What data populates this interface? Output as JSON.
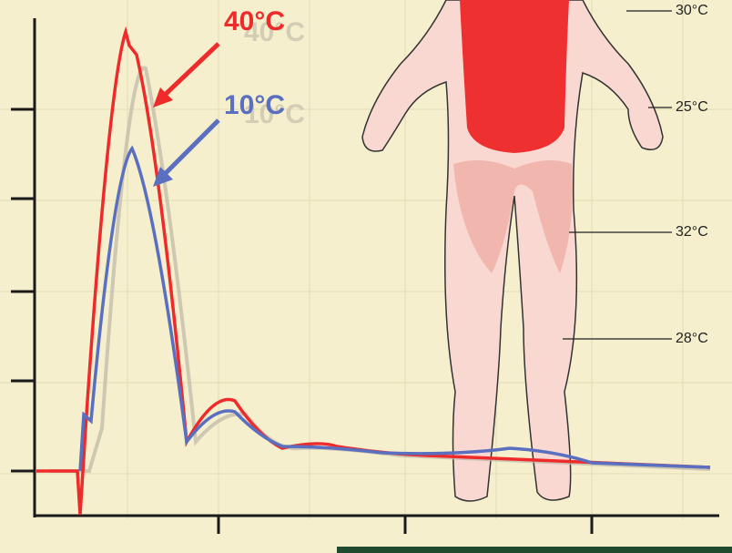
{
  "curves": [
    {
      "label": "40°C"
    },
    {
      "label": "10°C"
    }
  ],
  "body_labels": [
    "30°C",
    "25°C",
    "32°C",
    "28°C"
  ]
}
